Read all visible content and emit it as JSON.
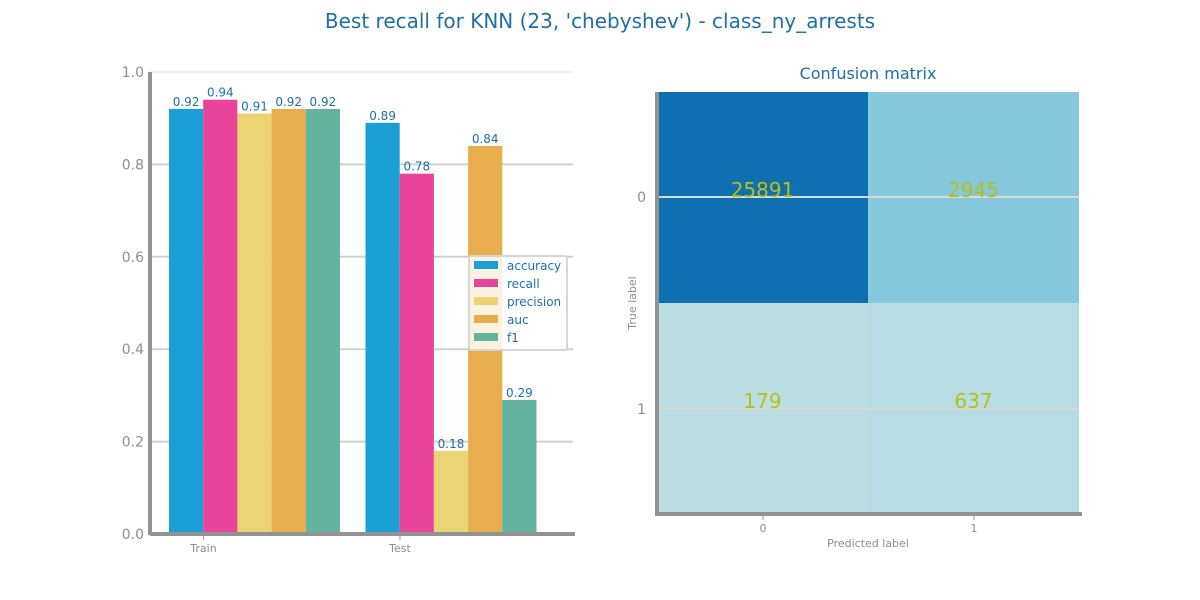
{
  "title": "Best recall for KNN (23, 'chebyshev') - class_ny_arrests",
  "chart_data": [
    {
      "type": "bar",
      "categories": [
        "Train",
        "Test"
      ],
      "series": [
        {
          "name": "accuracy",
          "values": [
            0.92,
            0.89
          ],
          "color": "#1a9fd7"
        },
        {
          "name": "recall",
          "values": [
            0.94,
            0.78
          ],
          "color": "#e8449b"
        },
        {
          "name": "precision",
          "values": [
            0.91,
            0.18
          ],
          "color": "#ebd473"
        },
        {
          "name": "auc",
          "values": [
            0.92,
            0.84
          ],
          "color": "#e8ad4d"
        },
        {
          "name": "f1",
          "values": [
            0.92,
            0.29
          ],
          "color": "#63b39f"
        }
      ],
      "value_labels": [
        [
          "0.92",
          "0.94",
          "0.91",
          "0.92",
          "0.92"
        ],
        [
          "0.89",
          "0.78",
          "0.18",
          "0.84",
          "0.29"
        ]
      ],
      "ylim": [
        0,
        1
      ],
      "yticks": [
        "0.0",
        "0.2",
        "0.4",
        "0.6",
        "0.8",
        "1.0"
      ],
      "grid": true,
      "legend": "center-right"
    },
    {
      "type": "heatmap",
      "title": "Confusion matrix",
      "xlabel": "Predicted label",
      "ylabel": "True label",
      "x_categories": [
        "0",
        "1"
      ],
      "y_categories": [
        "0",
        "1"
      ],
      "values": [
        [
          25891,
          2945
        ],
        [
          179,
          637
        ]
      ],
      "cell_colors": [
        [
          "#0e6fb1",
          "#86c8dd"
        ],
        [
          "#bbdee3",
          "#b7dce3"
        ]
      ]
    }
  ]
}
